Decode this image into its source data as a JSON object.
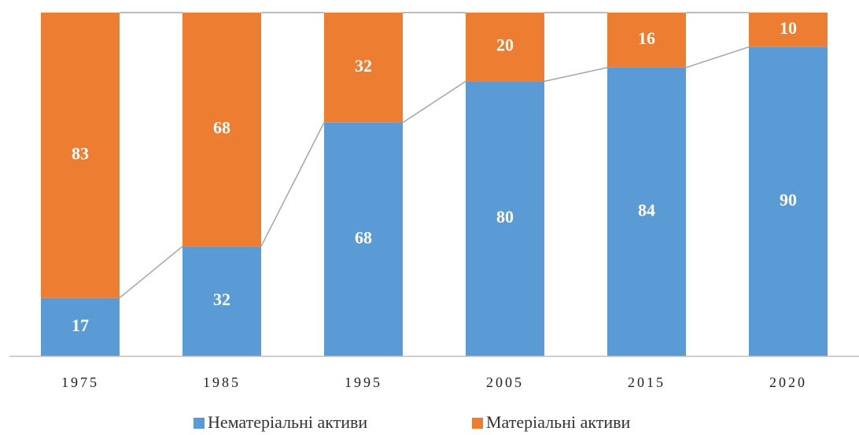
{
  "chart_data": {
    "type": "stacked_bar",
    "categories": [
      "1975",
      "1985",
      "1995",
      "2005",
      "2015",
      "2020"
    ],
    "series": [
      {
        "name": "Нематеріальні активи",
        "color": "#5b9bd5",
        "values": [
          17,
          32,
          68,
          80,
          84,
          90
        ]
      },
      {
        "name": "Матеріальні активи",
        "color": "#ed7d31",
        "values": [
          83,
          68,
          32,
          20,
          16,
          10
        ]
      }
    ],
    "ylim": [
      0,
      100
    ],
    "legend": "bottom",
    "series_lines": true
  }
}
